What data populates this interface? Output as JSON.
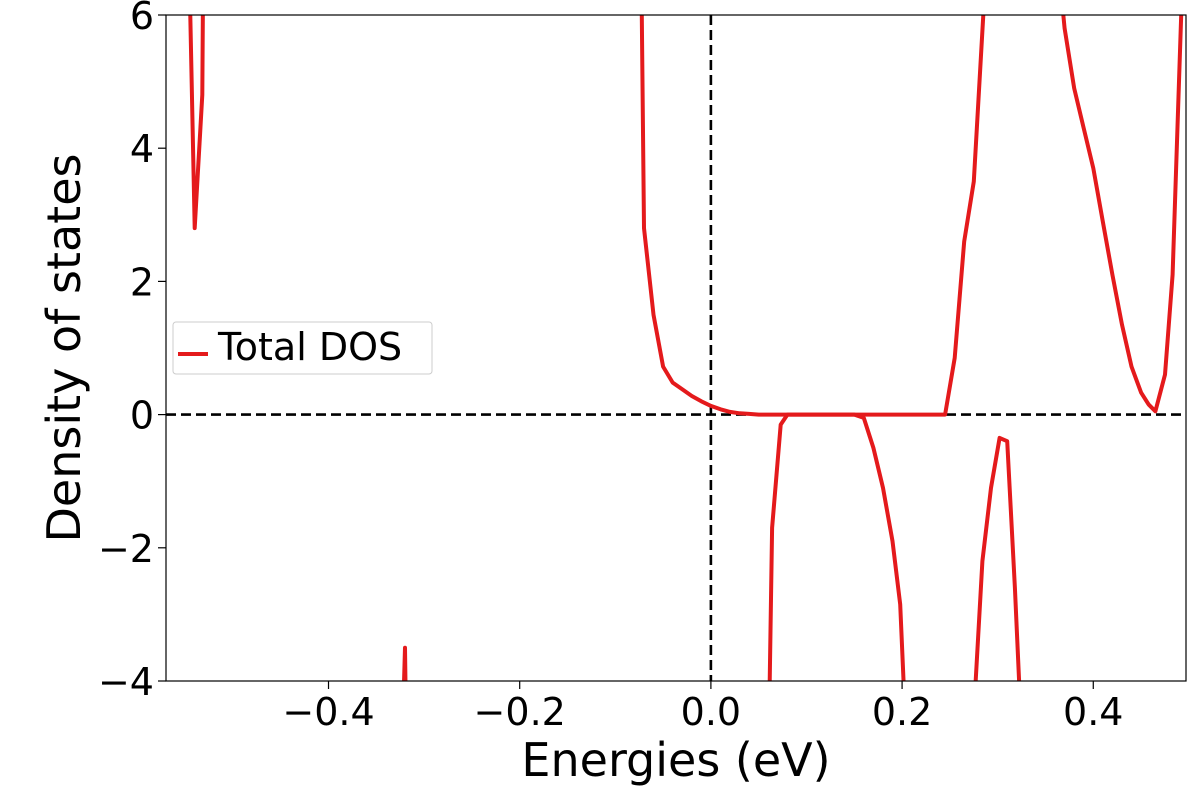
{
  "chart_data": {
    "type": "line",
    "title": "",
    "xlabel": "Energies (eV)",
    "ylabel": "Density of states",
    "xlim": [
      -0.57,
      0.497
    ],
    "ylim": [
      -4,
      6
    ],
    "xticks": [
      -0.4,
      -0.2,
      0.0,
      0.2,
      0.4
    ],
    "xtick_labels": [
      "−0.4",
      "−0.2",
      "0.0",
      "0.2",
      "0.4"
    ],
    "yticks": [
      -4,
      -2,
      0,
      2,
      4,
      6
    ],
    "ytick_labels": [
      "−4",
      "−2",
      "0",
      "2",
      "4",
      "6"
    ],
    "grid": false,
    "legend": {
      "position": "center-left",
      "entries": [
        "Total DOS"
      ]
    },
    "reference_lines": {
      "vertical_x": 0,
      "horizontal_y": 0,
      "style": "dashed",
      "color": "#000000"
    },
    "series": [
      {
        "name": "Total DOS",
        "color": "#e41a1c",
        "segments": [
          [
            [
              -0.546,
              7.0
            ],
            [
              -0.54,
              2.8
            ],
            [
              -0.532,
              4.8
            ],
            [
              -0.531,
              7.0
            ]
          ],
          [
            [
              -0.073,
              7.0
            ],
            [
              -0.07,
              2.8
            ],
            [
              -0.06,
              1.5
            ],
            [
              -0.05,
              0.72
            ],
            [
              -0.04,
              0.48
            ],
            [
              -0.03,
              0.38
            ],
            [
              -0.02,
              0.28
            ],
            [
              -0.01,
              0.2
            ],
            [
              0.0,
              0.13
            ],
            [
              0.01,
              0.08
            ],
            [
              0.02,
              0.04
            ],
            [
              0.03,
              0.02
            ],
            [
              0.04,
              0.01
            ],
            [
              0.05,
              0.0
            ],
            [
              0.1,
              0.0
            ],
            [
              0.15,
              0.0
            ],
            [
              0.2,
              0.0
            ],
            [
              0.245,
              0.0
            ],
            [
              0.255,
              0.85
            ],
            [
              0.265,
              2.6
            ],
            [
              0.275,
              3.5
            ],
            [
              0.285,
              6.0
            ],
            [
              0.29,
              7.0
            ]
          ],
          [
            [
              0.362,
              7.0
            ],
            [
              0.37,
              5.8
            ],
            [
              0.38,
              4.9
            ],
            [
              0.39,
              4.3
            ],
            [
              0.4,
              3.7
            ],
            [
              0.41,
              2.9
            ],
            [
              0.42,
              2.1
            ],
            [
              0.43,
              1.35
            ],
            [
              0.44,
              0.72
            ],
            [
              0.45,
              0.33
            ],
            [
              0.458,
              0.15
            ],
            [
              0.465,
              0.05
            ],
            [
              0.475,
              0.6
            ],
            [
              0.483,
              2.1
            ],
            [
              0.492,
              6.0
            ],
            [
              0.494,
              7.0
            ]
          ],
          [
            [
              -0.322,
              -4.5
            ],
            [
              -0.32,
              -3.5
            ],
            [
              -0.319,
              -4.5
            ]
          ],
          [
            [
              0.061,
              -4.5
            ],
            [
              0.064,
              -1.7
            ],
            [
              0.073,
              -0.15
            ],
            [
              0.08,
              0.0
            ],
            [
              0.15,
              0.0
            ],
            [
              0.16,
              -0.05
            ],
            [
              0.17,
              -0.5
            ],
            [
              0.18,
              -1.1
            ],
            [
              0.19,
              -1.9
            ],
            [
              0.198,
              -2.85
            ],
            [
              0.203,
              -4.5
            ]
          ],
          [
            [
              0.275,
              -4.5
            ],
            [
              0.284,
              -2.2
            ],
            [
              0.293,
              -1.1
            ],
            [
              0.302,
              -0.35
            ],
            [
              0.31,
              -0.4
            ],
            [
              0.318,
              -2.6
            ],
            [
              0.324,
              -4.5
            ]
          ]
        ]
      }
    ]
  }
}
